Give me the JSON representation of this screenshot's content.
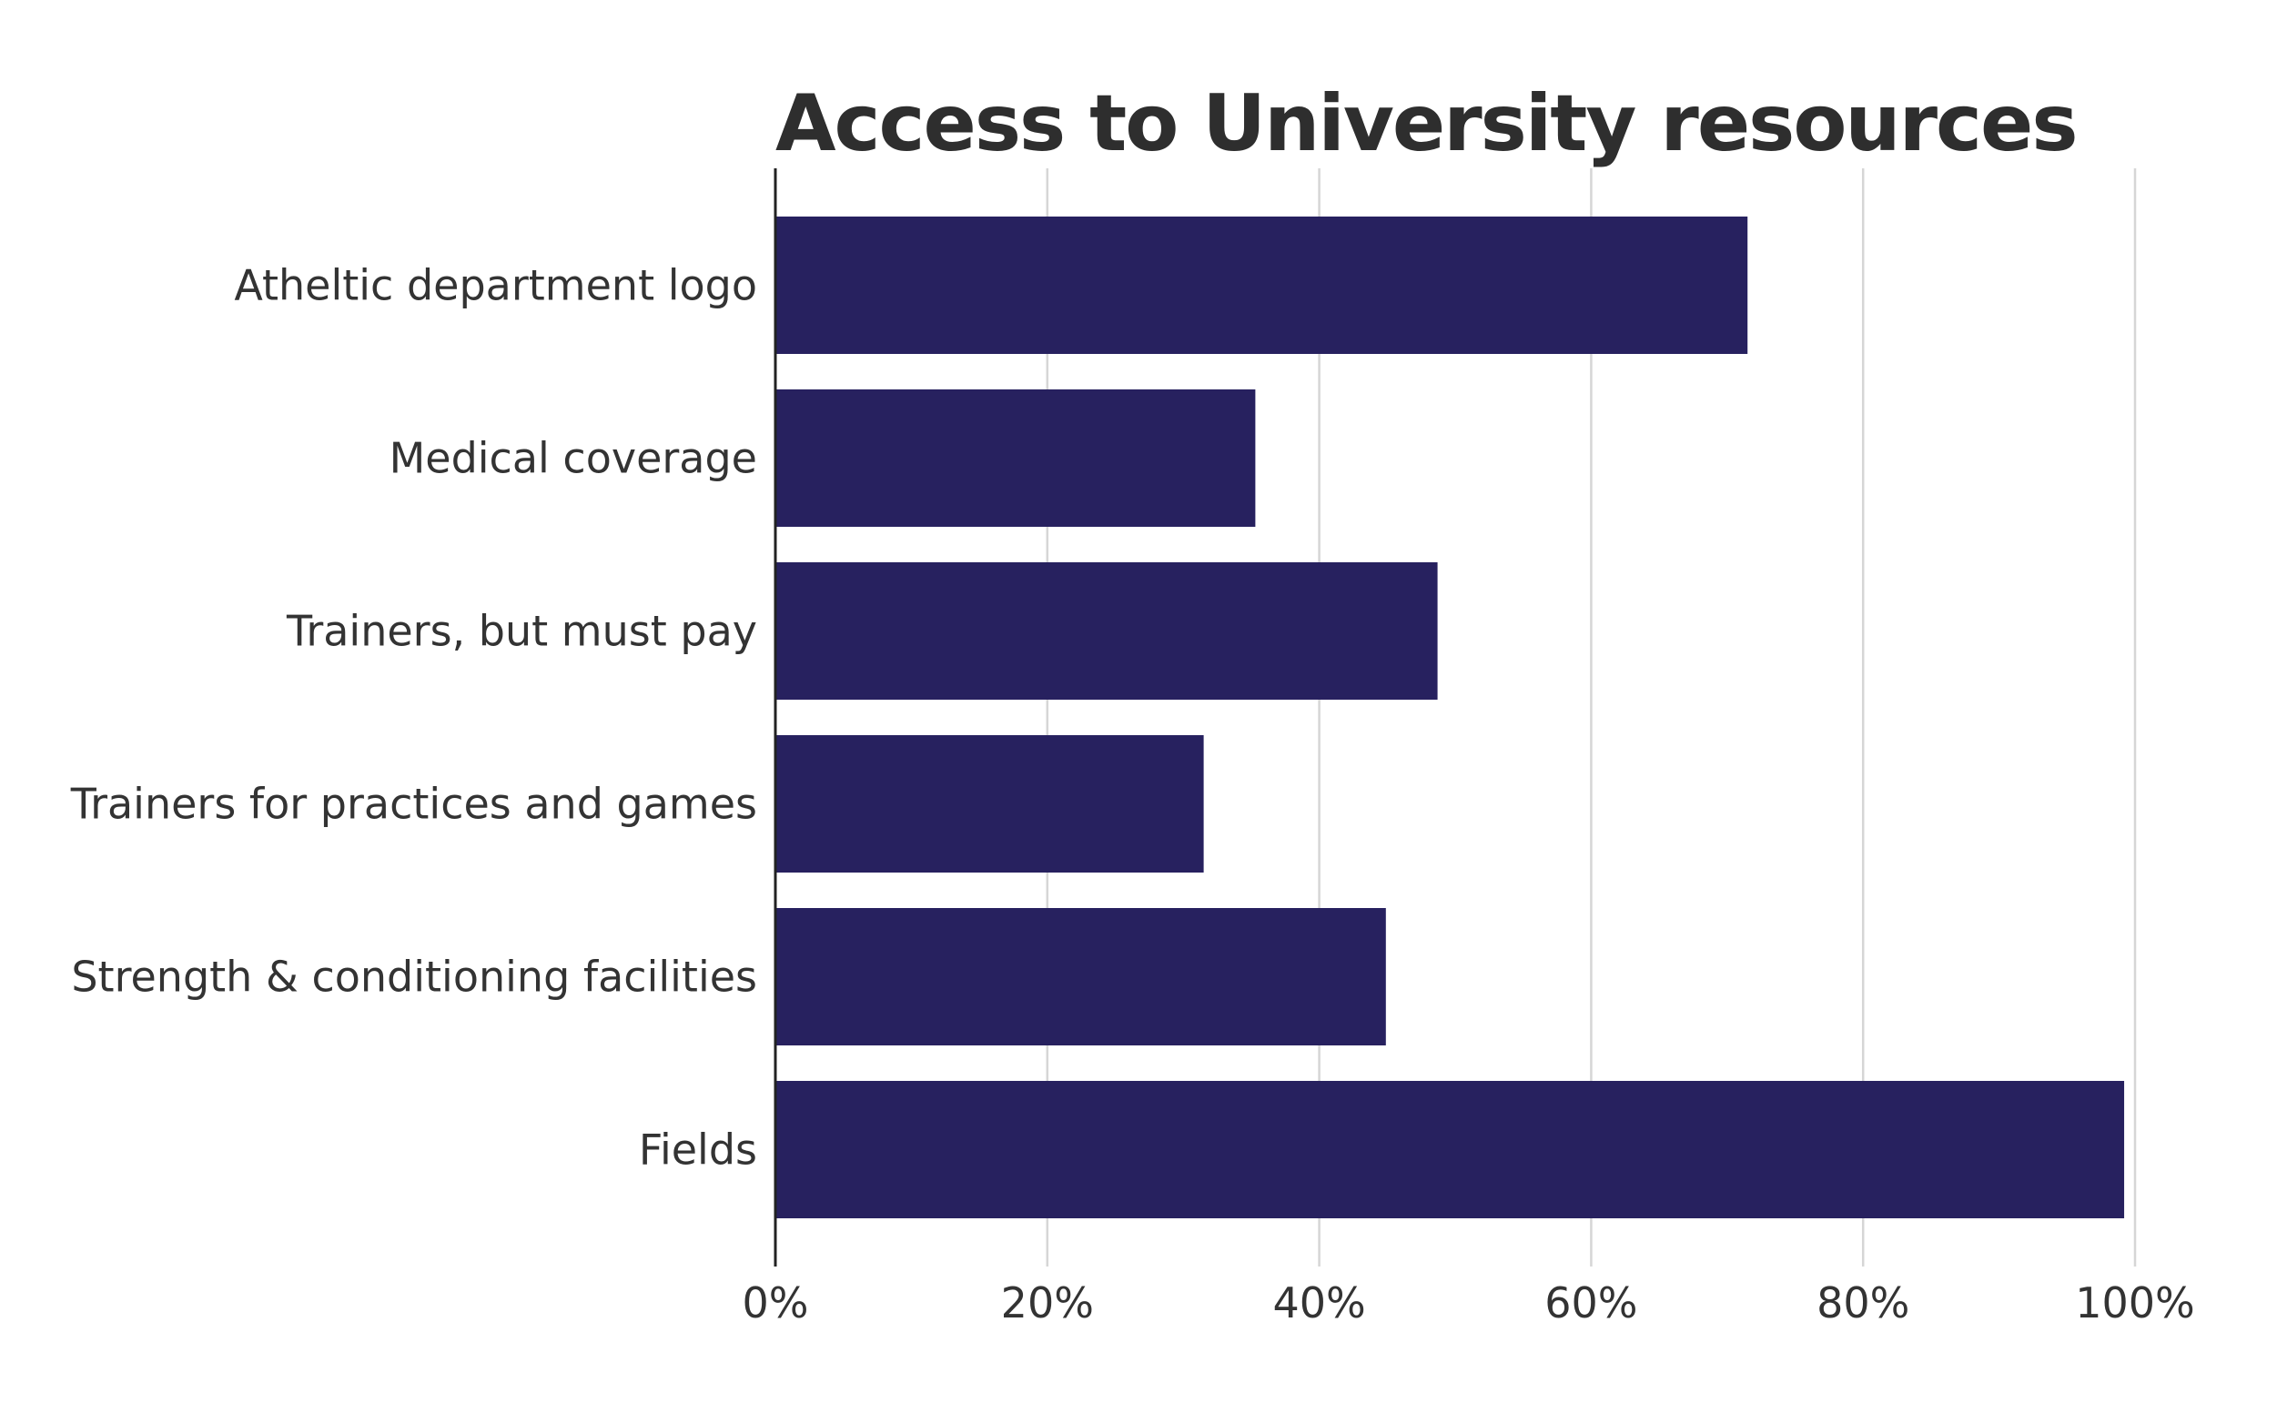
{
  "chart_data": {
    "type": "bar",
    "orientation": "horizontal",
    "title": "Access to University resources",
    "xlabel": "",
    "ylabel": "",
    "categories": [
      "Atheltic department logo",
      "Medical coverage",
      "Trainers, but must pay",
      "Trainers for practices and games",
      "Strength & conditioning facilities",
      "Fields"
    ],
    "values": [
      71.5,
      35.3,
      48.7,
      31.5,
      44.9,
      99.2
    ],
    "value_unit": "percent",
    "xlim": [
      0,
      100
    ],
    "x_ticks": [
      0,
      20,
      40,
      60,
      80,
      100
    ],
    "x_tick_labels": [
      "0%",
      "20%",
      "40%",
      "60%",
      "80%",
      "100%"
    ],
    "grid": "vertical",
    "legend": "none",
    "bar_color": "#27215f"
  }
}
